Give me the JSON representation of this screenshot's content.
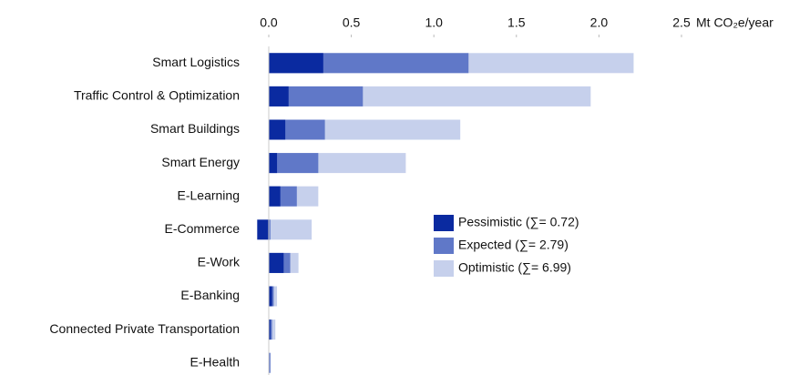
{
  "chart_data": {
    "type": "overlapping-bar",
    "x_label": "Mt CO₂e/year",
    "categories": [
      "Smart Logistics",
      "Traffic Control & Optimization",
      "Smart Buildings",
      "Smart Energy",
      "E-Learning",
      "E-Commerce",
      "E-Work",
      "E-Banking",
      "Connected Private Transportation",
      "E-Health"
    ],
    "series": [
      {
        "name": "Pessimistic (∑= 0.72)",
        "color": "#0a2aa0",
        "values": [
          0.33,
          0.12,
          0.1,
          0.05,
          0.07,
          -0.07,
          0.09,
          0.02,
          0.01,
          0
        ]
      },
      {
        "name": "Expected (∑= 2.79)",
        "color": "#6078c8",
        "values": [
          1.21,
          0.57,
          0.34,
          0.3,
          0.17,
          0.01,
          0.13,
          0.03,
          0.02,
          0.01
        ]
      },
      {
        "name": "Optimistic (∑= 6.99)",
        "color": "#c6d0ec",
        "values": [
          2.21,
          1.95,
          1.16,
          0.83,
          0.3,
          0.26,
          0.18,
          0.05,
          0.04,
          0.01
        ]
      }
    ],
    "xlim": [
      -0.07,
      2.5
    ],
    "xticks": [
      {
        "value": 0,
        "label": "0.0"
      },
      {
        "value": 0.5,
        "label": "0.5"
      },
      {
        "value": 1,
        "label": "1.0"
      },
      {
        "value": 1.5,
        "label": "1.5"
      },
      {
        "value": 2,
        "label": "2.0"
      },
      {
        "value": 2.5,
        "label": "2.5"
      }
    ]
  }
}
